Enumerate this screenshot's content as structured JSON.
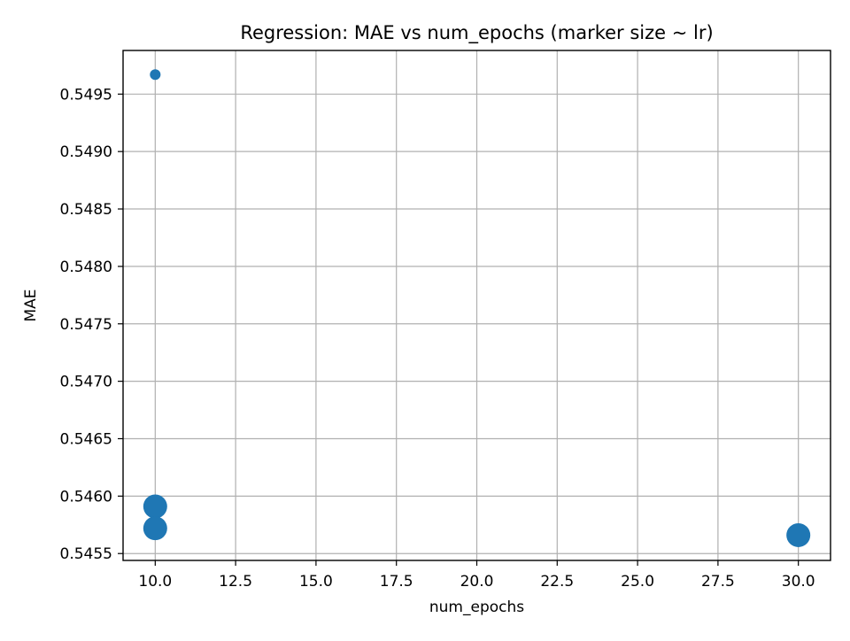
{
  "chart_data": {
    "type": "scatter",
    "title": "Regression: MAE vs num_epochs (marker size ~ lr)",
    "xlabel": "num_epochs",
    "ylabel": "MAE",
    "xlim": [
      9.0,
      31.0
    ],
    "ylim": [
      0.54544,
      0.54988
    ],
    "xticks": [
      10.0,
      12.5,
      15.0,
      17.5,
      20.0,
      22.5,
      25.0,
      27.5,
      30.0
    ],
    "xtick_labels": [
      "10.0",
      "12.5",
      "15.0",
      "17.5",
      "20.0",
      "22.5",
      "25.0",
      "27.5",
      "30.0"
    ],
    "yticks": [
      0.5455,
      0.546,
      0.5465,
      0.547,
      0.5475,
      0.548,
      0.5485,
      0.549,
      0.5495
    ],
    "ytick_labels": [
      "0.5455",
      "0.5460",
      "0.5465",
      "0.5470",
      "0.5475",
      "0.5480",
      "0.5485",
      "0.5490",
      "0.5495"
    ],
    "grid": true,
    "marker_color": "#1f77b4",
    "series": [
      {
        "x": [
          10.0,
          10.0,
          10.0,
          30.0
        ],
        "y": [
          0.54967,
          0.54591,
          0.54572,
          0.54566
        ],
        "size_relative": [
          0.2,
          1.0,
          1.0,
          1.0
        ]
      }
    ]
  }
}
